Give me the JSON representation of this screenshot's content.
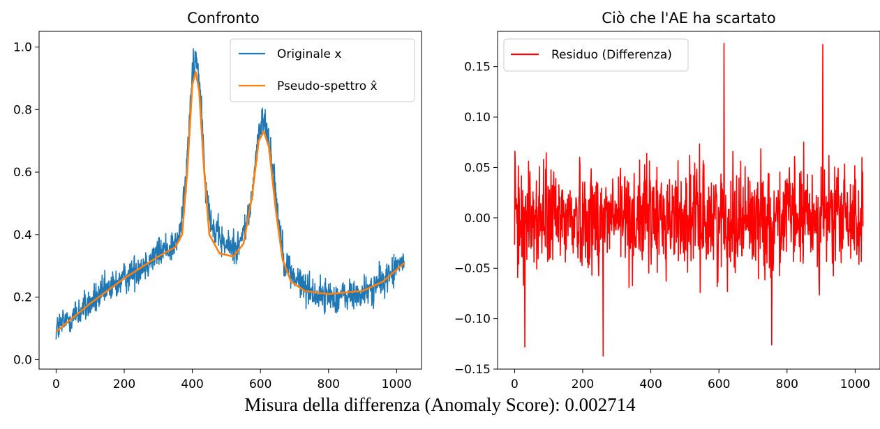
{
  "chart_data": [
    {
      "type": "line",
      "title": "Confronto",
      "xlabel": "",
      "ylabel": "",
      "xlim": [
        -50,
        1073
      ],
      "ylim": [
        -0.03,
        1.05
      ],
      "xticks": [
        0,
        200,
        400,
        600,
        800,
        1000
      ],
      "yticks": [
        0.0,
        0.2,
        0.4,
        0.6,
        0.8,
        1.0
      ],
      "xtick_labels": [
        "0",
        "200",
        "400",
        "600",
        "800",
        "1000"
      ],
      "ytick_labels": [
        "0.0",
        "0.2",
        "0.4",
        "0.6",
        "0.8",
        "1.0"
      ],
      "grid": false,
      "legend_position": "top-right",
      "series": [
        {
          "name": "Originale x",
          "color": "#1f77b4",
          "noise": 0.05,
          "x": [
            0,
            100,
            200,
            300,
            360,
            380,
            395,
            410,
            425,
            440,
            460,
            500,
            540,
            570,
            590,
            610,
            630,
            650,
            670,
            700,
            760,
            820,
            900,
            960,
            1023
          ],
          "y": [
            0.1,
            0.18,
            0.26,
            0.34,
            0.38,
            0.55,
            0.85,
            0.97,
            0.85,
            0.55,
            0.42,
            0.36,
            0.37,
            0.48,
            0.68,
            0.78,
            0.68,
            0.48,
            0.32,
            0.26,
            0.21,
            0.2,
            0.21,
            0.25,
            0.32
          ]
        },
        {
          "name": "Pseudo-spettro x̂",
          "color": "#ff7f0e",
          "x": [
            0,
            100,
            200,
            300,
            350,
            370,
            385,
            400,
            410,
            420,
            435,
            450,
            480,
            520,
            550,
            575,
            595,
            610,
            625,
            645,
            665,
            690,
            730,
            800,
            900,
            960,
            1023
          ],
          "y": [
            0.09,
            0.18,
            0.26,
            0.33,
            0.36,
            0.4,
            0.6,
            0.88,
            0.92,
            0.86,
            0.6,
            0.4,
            0.34,
            0.33,
            0.37,
            0.52,
            0.7,
            0.73,
            0.68,
            0.48,
            0.32,
            0.25,
            0.22,
            0.21,
            0.22,
            0.25,
            0.31
          ]
        }
      ]
    },
    {
      "type": "line",
      "title": "Ciò che l'AE ha scartato",
      "xlabel": "",
      "ylabel": "",
      "xlim": [
        -50,
        1073
      ],
      "ylim": [
        -0.15,
        0.185
      ],
      "xticks": [
        0,
        200,
        400,
        600,
        800,
        1000
      ],
      "yticks": [
        -0.15,
        -0.1,
        -0.05,
        0.0,
        0.05,
        0.1,
        0.15
      ],
      "xtick_labels": [
        "0",
        "200",
        "400",
        "600",
        "800",
        "1000"
      ],
      "ytick_labels": [
        "−0.15",
        "−0.10",
        "−0.05",
        "0.00",
        "0.05",
        "0.10",
        "0.15"
      ],
      "grid": false,
      "legend_position": "top-left",
      "series": [
        {
          "name": "Residuo (Differenza)",
          "color": "#ff0000",
          "noise": 0.05,
          "x": [
            0,
            1023
          ],
          "y": [
            0.0,
            0.0
          ],
          "extremes": [
            {
              "x": 30,
              "y": -0.128
            },
            {
              "x": 260,
              "y": -0.137
            },
            {
              "x": 615,
              "y": 0.173
            },
            {
              "x": 755,
              "y": -0.126
            },
            {
              "x": 905,
              "y": 0.172
            }
          ]
        }
      ]
    }
  ],
  "caption": "Misura della differenza (Anomaly Score): 0.002714"
}
